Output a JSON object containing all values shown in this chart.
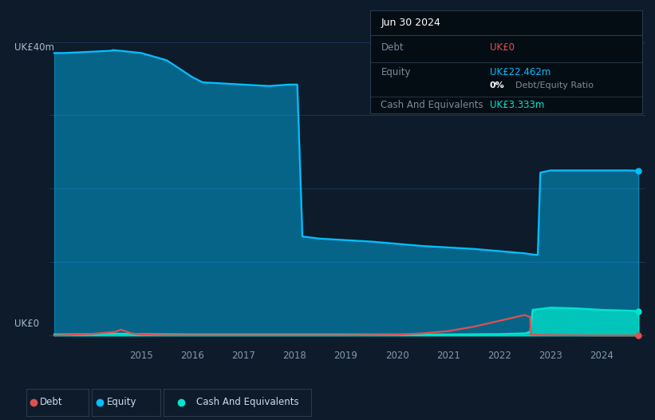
{
  "bg_color": "#0d1b2a",
  "plot_bg_color": "#0d1b2a",
  "grid_color": "#1e3a5f",
  "debt_color": "#e05050",
  "equity_color": "#00bfff",
  "cash_color": "#00e5cc",
  "ylabel_text": "UK£40m",
  "ylabel_zero": "UK£0",
  "ylim": [
    -1.5,
    44
  ],
  "equity_data": {
    "x": [
      2013.3,
      2013.5,
      2014.4,
      2014.45,
      2015.0,
      2015.5,
      2016.0,
      2016.2,
      2017.5,
      2017.9,
      2018.0,
      2018.05,
      2018.15,
      2018.5,
      2019.0,
      2019.5,
      2020.0,
      2020.5,
      2021.0,
      2021.5,
      2022.0,
      2022.5,
      2022.7,
      2022.75,
      2022.8,
      2023.0,
      2023.5,
      2024.0,
      2024.5,
      2024.72
    ],
    "y": [
      38.5,
      38.5,
      38.8,
      38.9,
      38.5,
      37.5,
      35.2,
      34.5,
      34.0,
      34.2,
      34.2,
      34.2,
      13.5,
      13.2,
      13.0,
      12.8,
      12.5,
      12.2,
      12.0,
      11.8,
      11.5,
      11.2,
      11.0,
      11.0,
      22.2,
      22.5,
      22.5,
      22.5,
      22.5,
      22.462
    ]
  },
  "debt_data": {
    "x": [
      2013.3,
      2014.0,
      2014.5,
      2014.6,
      2014.8,
      2015.0,
      2015.2,
      2015.5,
      2016.0,
      2019.0,
      2020.0,
      2020.5,
      2021.0,
      2021.5,
      2022.0,
      2022.5,
      2022.6,
      2022.62,
      2023.0,
      2024.0,
      2024.72
    ],
    "y": [
      0.0,
      0.2,
      0.5,
      0.8,
      0.3,
      0.15,
      0.1,
      0.05,
      0.05,
      0.05,
      0.1,
      0.3,
      0.6,
      1.2,
      2.0,
      2.8,
      2.5,
      0.1,
      0.05,
      0.0,
      0.0
    ]
  },
  "cash_data": {
    "x": [
      2013.3,
      2014.0,
      2014.5,
      2015.0,
      2016.0,
      2019.0,
      2020.0,
      2021.0,
      2022.0,
      2022.5,
      2022.6,
      2022.65,
      2023.0,
      2023.5,
      2024.0,
      2024.5,
      2024.72
    ],
    "y": [
      0.15,
      0.2,
      0.25,
      0.2,
      0.15,
      0.15,
      0.15,
      0.15,
      0.2,
      0.3,
      0.5,
      3.5,
      3.8,
      3.7,
      3.5,
      3.4,
      3.333
    ]
  },
  "x_ticks": [
    2015,
    2016,
    2017,
    2018,
    2019,
    2020,
    2021,
    2022,
    2023,
    2024
  ],
  "x_labels": [
    "2015",
    "2016",
    "2017",
    "2018",
    "2019",
    "2020",
    "2021",
    "2022",
    "2023",
    "2024"
  ],
  "xlim": [
    2013.2,
    2024.85
  ],
  "tooltip": {
    "title": "Jun 30 2024",
    "rows": [
      {
        "label": "Debt",
        "value": "UK£0",
        "value_color": "#e05050",
        "has_sub": false
      },
      {
        "label": "Equity",
        "value": "UK£22.462m",
        "value_color": "#00bfff",
        "has_sub": true,
        "sub_bold": "0%",
        "sub_text": " Debt/Equity Ratio"
      },
      {
        "label": "Cash And Equivalents",
        "value": "UK£3.333m",
        "value_color": "#00e5cc",
        "has_sub": false
      }
    ]
  },
  "legend_items": [
    {
      "label": "Debt",
      "color": "#e05050"
    },
    {
      "label": "Equity",
      "color": "#00bfff"
    },
    {
      "label": "Cash And Equivalents",
      "color": "#00e5cc"
    }
  ]
}
